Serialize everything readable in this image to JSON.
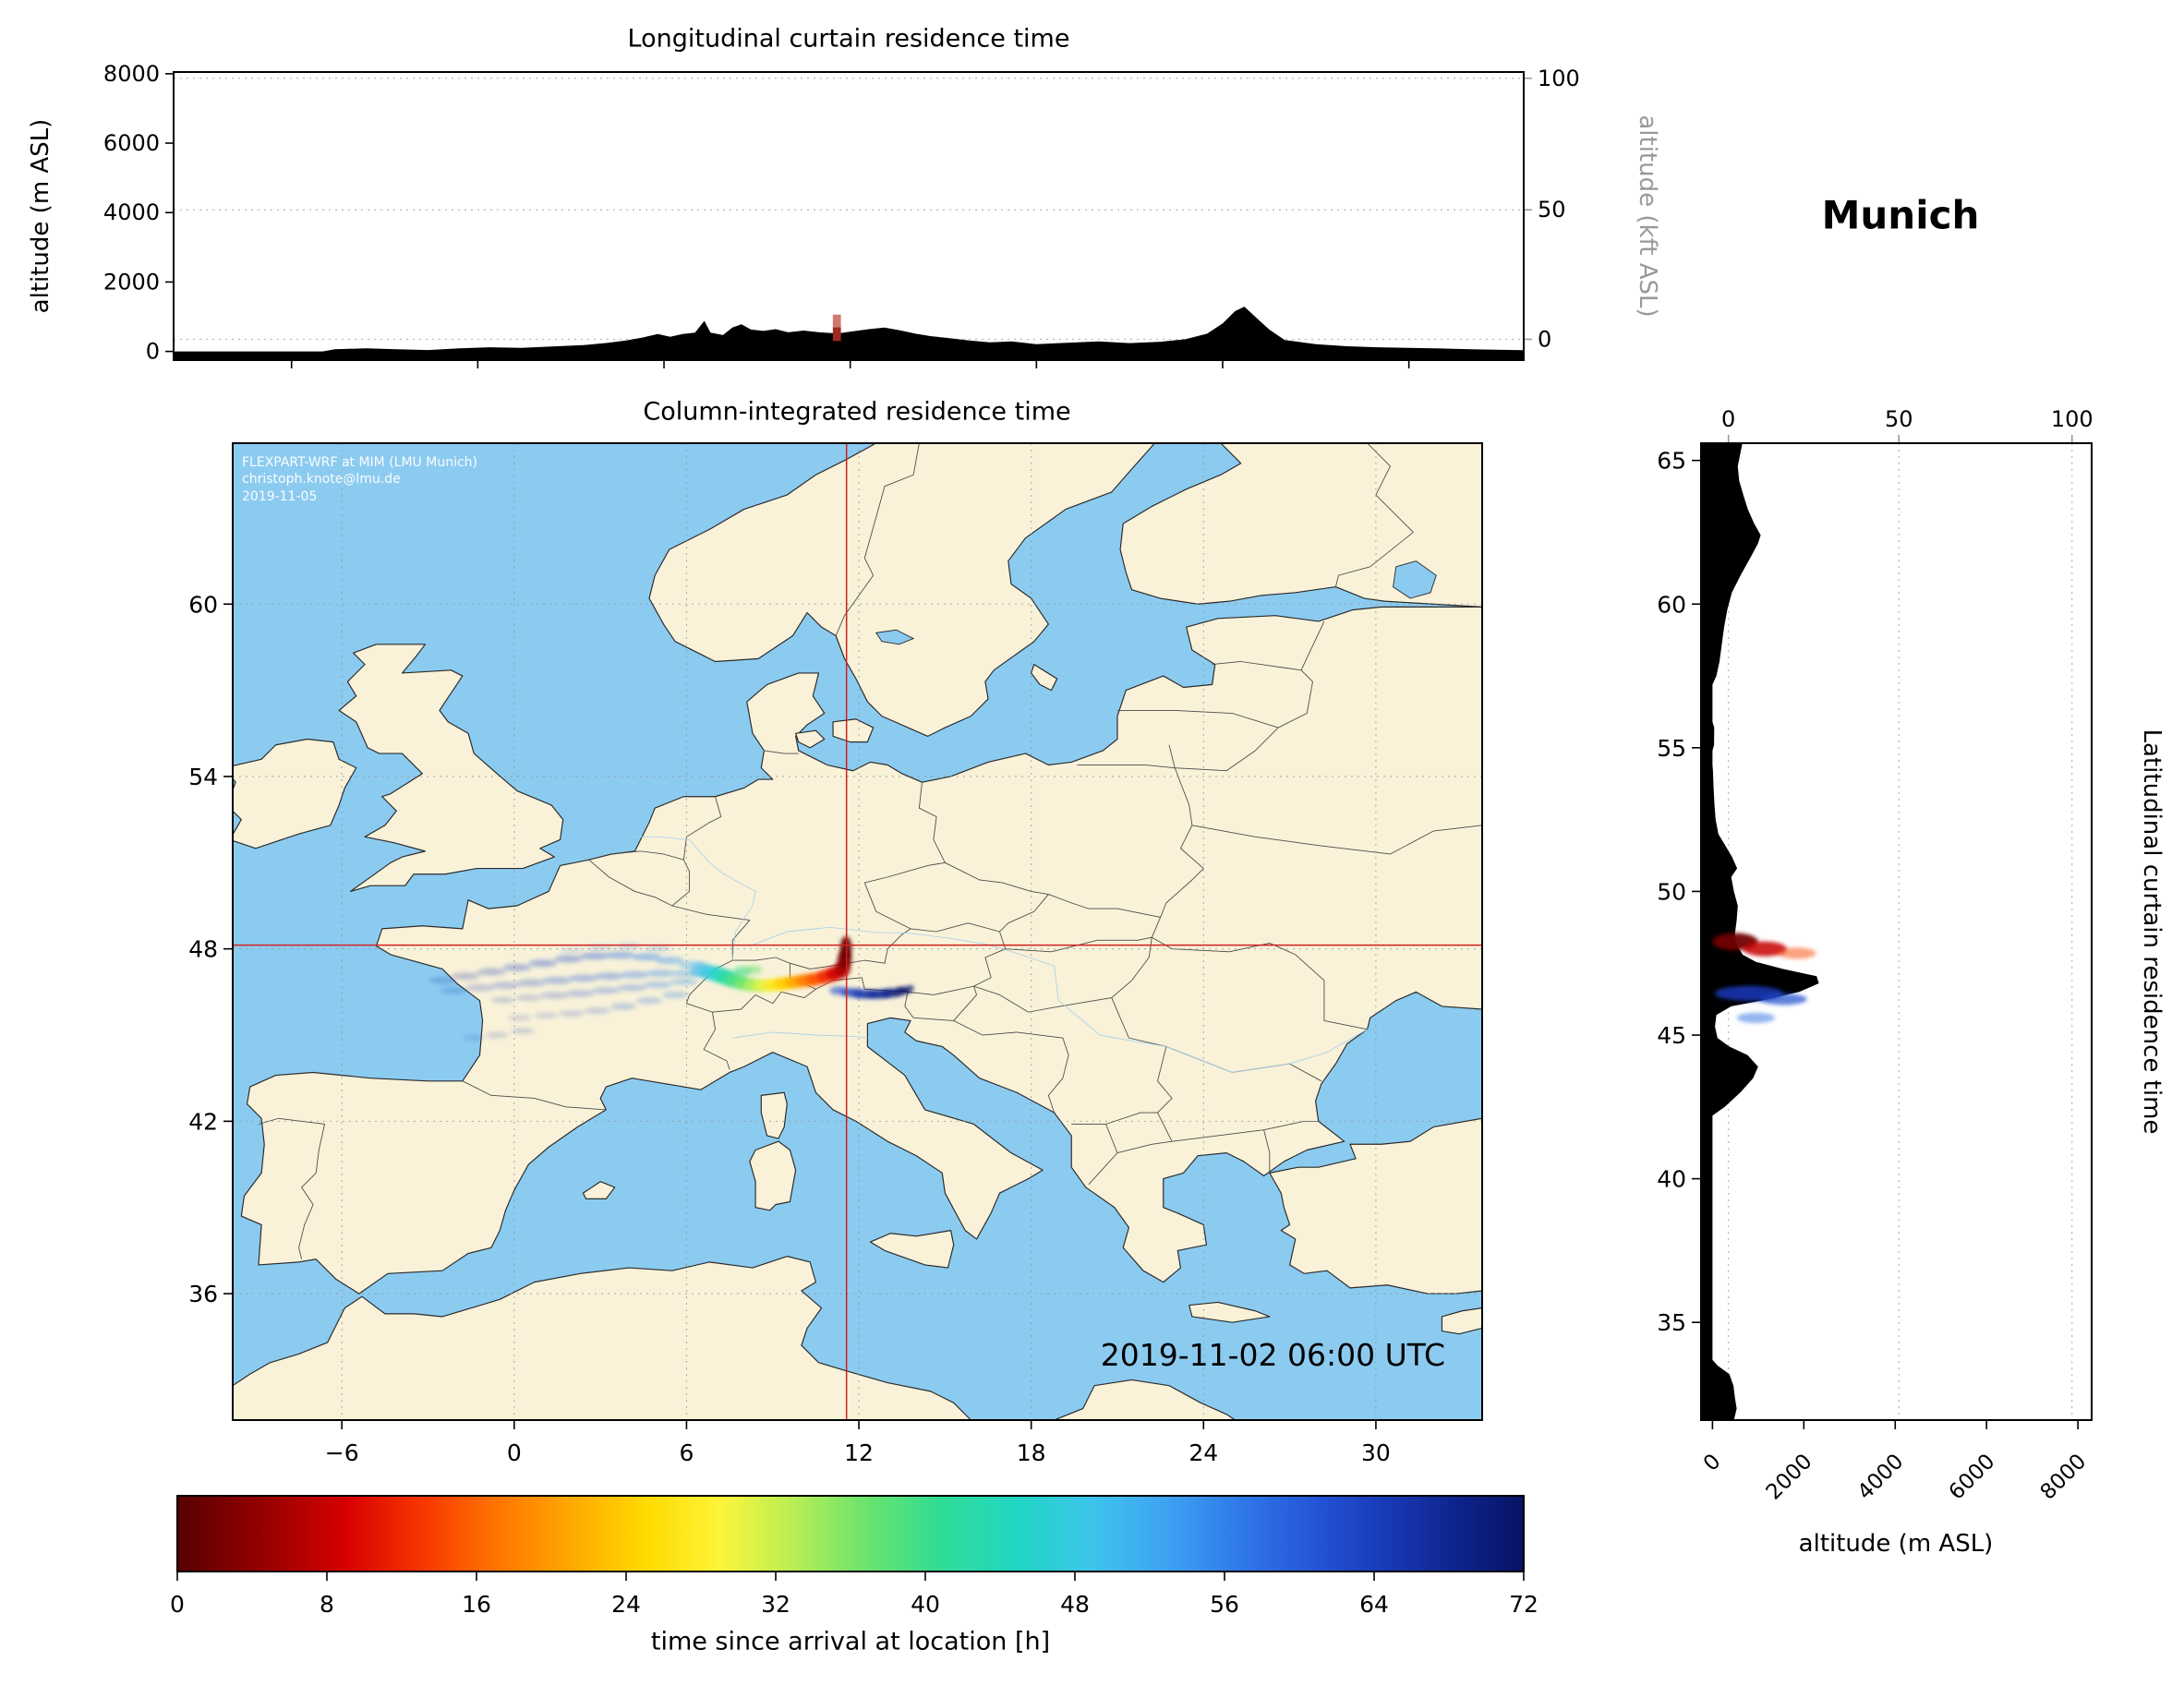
{
  "figure": {
    "location_label": "Munich",
    "top_panel_title": "Longitudinal curtain residence time",
    "map_title": "Column-integrated residence time",
    "right_panel_title": "Latitudinal curtain residence time",
    "alt_m_axis_label": "altitude (m ASL)",
    "alt_kft_axis_label": "altitude (kft ASL)",
    "right_alt_axis_label": "altitude (m ASL)",
    "timestamp": "2019-11-02 06:00 UTC",
    "watermark_line1": "FLEXPART-WRF at MIM (LMU Munich)",
    "watermark_line2": "christoph.knote@lmu.de",
    "watermark_line3": "2019-11-05",
    "colorbar_label": "time since arrival at location [h]"
  },
  "chart_data": {
    "type": "heatmap",
    "title": "FLEXPART-WRF backward residence time for Munich, 2019-11-02 06:00 UTC",
    "colorbar": {
      "range": [
        0,
        72
      ],
      "ticks": [
        0,
        8,
        16,
        24,
        32,
        40,
        48,
        56,
        64,
        72
      ],
      "stops": [
        [
          0,
          "#570000"
        ],
        [
          5,
          "#9b0000"
        ],
        [
          9,
          "#d60000"
        ],
        [
          13,
          "#f63500"
        ],
        [
          17,
          "#ff7300"
        ],
        [
          21,
          "#ffa800"
        ],
        [
          25,
          "#ffd900"
        ],
        [
          29,
          "#fdf53a"
        ],
        [
          33,
          "#b8ee55"
        ],
        [
          37,
          "#67e36e"
        ],
        [
          41,
          "#2fdc96"
        ],
        [
          45,
          "#21d6c5"
        ],
        [
          49,
          "#3ec3ec"
        ],
        [
          53,
          "#3da1f2"
        ],
        [
          57,
          "#2f77e8"
        ],
        [
          61,
          "#2353d6"
        ],
        [
          65,
          "#1737b2"
        ],
        [
          69,
          "#0c2187"
        ],
        [
          72,
          "#071263"
        ]
      ]
    },
    "map": {
      "lon_range": [
        -9.8,
        33.7
      ],
      "lat_range": [
        31.6,
        65.6
      ],
      "lon_ticks": [
        [
          -6,
          "−6"
        ],
        [
          0,
          "0"
        ],
        [
          6,
          "6"
        ],
        [
          12,
          "12"
        ],
        [
          18,
          "18"
        ],
        [
          24,
          "24"
        ],
        [
          30,
          "30"
        ]
      ],
      "lat_ticks": [
        [
          36,
          "36"
        ],
        [
          42,
          "42"
        ],
        [
          48,
          "48"
        ],
        [
          54,
          "54"
        ],
        [
          60,
          "60"
        ]
      ],
      "source": {
        "lon": 11.57,
        "lat": 48.13
      },
      "sea_color": "#8ccbf0",
      "land_color": "#f9f2d9",
      "crosshair_color": "#d02020"
    },
    "longitudinal_curtain": {
      "alt_range_m": [
        -250,
        8050
      ],
      "alt_ticks": [
        [
          0,
          "0"
        ],
        [
          2000,
          "2000"
        ],
        [
          4000,
          "4000"
        ],
        [
          6000,
          "6000"
        ],
        [
          8000,
          "8000"
        ]
      ],
      "kft_ticks": [
        [
          350,
          "0"
        ],
        [
          4080,
          "50"
        ],
        [
          7870,
          "100"
        ]
      ],
      "source_marker": {
        "lon": 11.57,
        "half_width_deg": 0.13,
        "segments": [
          [
            300,
            700,
            "#9c2b23"
          ],
          [
            700,
            1060,
            "#cf7a6d"
          ]
        ]
      },
      "terrain": [
        [
          -9.8,
          0
        ],
        [
          -5.0,
          0
        ],
        [
          -4.6,
          60
        ],
        [
          -3.6,
          90
        ],
        [
          -2.6,
          60
        ],
        [
          -1.6,
          40
        ],
        [
          -0.6,
          90
        ],
        [
          0.4,
          120
        ],
        [
          1.4,
          100
        ],
        [
          2.4,
          140
        ],
        [
          3.4,
          180
        ],
        [
          4.2,
          250
        ],
        [
          4.8,
          320
        ],
        [
          5.3,
          400
        ],
        [
          5.8,
          500
        ],
        [
          6.2,
          420
        ],
        [
          6.6,
          500
        ],
        [
          7.0,
          540
        ],
        [
          7.3,
          880
        ],
        [
          7.5,
          540
        ],
        [
          7.9,
          470
        ],
        [
          8.2,
          690
        ],
        [
          8.5,
          780
        ],
        [
          8.8,
          630
        ],
        [
          9.2,
          590
        ],
        [
          9.6,
          640
        ],
        [
          10.0,
          550
        ],
        [
          10.5,
          600
        ],
        [
          11.0,
          550
        ],
        [
          11.6,
          520
        ],
        [
          12.1,
          580
        ],
        [
          12.6,
          640
        ],
        [
          13.1,
          690
        ],
        [
          13.6,
          610
        ],
        [
          14.1,
          510
        ],
        [
          14.6,
          440
        ],
        [
          15.1,
          390
        ],
        [
          15.8,
          320
        ],
        [
          16.5,
          260
        ],
        [
          17.2,
          290
        ],
        [
          18.0,
          210
        ],
        [
          19.0,
          250
        ],
        [
          20.0,
          290
        ],
        [
          21.0,
          240
        ],
        [
          22.0,
          280
        ],
        [
          22.8,
          350
        ],
        [
          23.5,
          510
        ],
        [
          24.0,
          810
        ],
        [
          24.4,
          1160
        ],
        [
          24.7,
          1290
        ],
        [
          25.0,
          1040
        ],
        [
          25.5,
          630
        ],
        [
          26.0,
          330
        ],
        [
          27.0,
          210
        ],
        [
          28.0,
          150
        ],
        [
          29.0,
          120
        ],
        [
          30.0,
          100
        ],
        [
          31.0,
          85
        ],
        [
          32.0,
          65
        ],
        [
          33.0,
          45
        ],
        [
          33.7,
          35
        ]
      ]
    },
    "latitudinal_curtain": {
      "alt_range_m": [
        -250,
        8300
      ],
      "alt_ticks": [
        [
          0,
          "0"
        ],
        [
          2000,
          "2000"
        ],
        [
          4000,
          "4000"
        ],
        [
          6000,
          "6000"
        ],
        [
          8000,
          "8000"
        ]
      ],
      "kft_ticks": [
        [
          350,
          "0"
        ],
        [
          4080,
          "50"
        ],
        [
          7870,
          "100"
        ]
      ],
      "lat_ticks": [
        [
          35,
          "35"
        ],
        [
          40,
          "40"
        ],
        [
          45,
          "45"
        ],
        [
          50,
          "50"
        ],
        [
          55,
          "55"
        ],
        [
          60,
          "60"
        ],
        [
          65,
          "65"
        ]
      ],
      "terrain": [
        [
          31.6,
          470
        ],
        [
          32.0,
          530
        ],
        [
          32.4,
          490
        ],
        [
          32.8,
          460
        ],
        [
          33.2,
          370
        ],
        [
          33.5,
          110
        ],
        [
          33.7,
          0
        ],
        [
          42.2,
          0
        ],
        [
          42.5,
          270
        ],
        [
          43.0,
          610
        ],
        [
          43.5,
          890
        ],
        [
          43.9,
          1000
        ],
        [
          44.3,
          770
        ],
        [
          44.6,
          370
        ],
        [
          44.9,
          110
        ],
        [
          45.3,
          55
        ],
        [
          45.7,
          85
        ],
        [
          46.0,
          410
        ],
        [
          46.2,
          1080
        ],
        [
          46.5,
          1900
        ],
        [
          46.8,
          2330
        ],
        [
          47.05,
          2280
        ],
        [
          47.3,
          1550
        ],
        [
          47.55,
          950
        ],
        [
          47.8,
          660
        ],
        [
          48.13,
          540
        ],
        [
          48.5,
          490
        ],
        [
          49.0,
          530
        ],
        [
          49.5,
          555
        ],
        [
          50.0,
          470
        ],
        [
          50.5,
          410
        ],
        [
          50.8,
          540
        ],
        [
          51.2,
          430
        ],
        [
          51.6,
          280
        ],
        [
          52.0,
          130
        ],
        [
          52.5,
          70
        ],
        [
          53.0,
          45
        ],
        [
          53.6,
          25
        ],
        [
          54.2,
          10
        ],
        [
          54.4,
          0
        ],
        [
          54.9,
          0
        ],
        [
          55.1,
          35
        ],
        [
          55.7,
          40
        ],
        [
          55.9,
          0
        ],
        [
          57.2,
          0
        ],
        [
          57.5,
          85
        ],
        [
          58.0,
          155
        ],
        [
          58.6,
          205
        ],
        [
          59.2,
          255
        ],
        [
          59.8,
          325
        ],
        [
          60.4,
          425
        ],
        [
          61.0,
          615
        ],
        [
          61.6,
          825
        ],
        [
          62.1,
          995
        ],
        [
          62.4,
          1055
        ],
        [
          62.8,
          915
        ],
        [
          63.3,
          775
        ],
        [
          63.8,
          675
        ],
        [
          64.3,
          585
        ],
        [
          64.8,
          555
        ],
        [
          65.2,
          605
        ],
        [
          65.6,
          655
        ]
      ],
      "features": [
        [
          48.25,
          500,
          2,
          500,
          0.3,
          0.95
        ],
        [
          48.0,
          1150,
          8,
          480,
          0.26,
          0.85
        ],
        [
          47.85,
          1850,
          14,
          420,
          0.2,
          0.5
        ],
        [
          46.45,
          800,
          66,
          750,
          0.26,
          0.95
        ],
        [
          46.25,
          1550,
          62,
          520,
          0.2,
          0.7
        ],
        [
          45.6,
          950,
          58,
          420,
          0.18,
          0.5
        ]
      ]
    },
    "plume_points": [
      [
        11.55,
        48.02,
        1,
        0.2,
        0.42,
        0.95
      ],
      [
        11.5,
        47.62,
        3,
        0.24,
        0.34,
        0.95
      ],
      [
        11.42,
        47.3,
        6,
        0.28,
        0.28,
        0.9
      ],
      [
        11.18,
        47.15,
        9,
        0.33,
        0.24,
        0.9
      ],
      [
        10.88,
        47.05,
        12,
        0.36,
        0.23,
        0.9
      ],
      [
        10.52,
        46.95,
        15,
        0.38,
        0.22,
        0.9
      ],
      [
        10.16,
        46.9,
        18,
        0.38,
        0.22,
        0.9
      ],
      [
        9.8,
        46.85,
        21,
        0.38,
        0.21,
        0.9
      ],
      [
        9.45,
        46.8,
        24,
        0.4,
        0.21,
        0.9
      ],
      [
        9.1,
        46.75,
        27,
        0.4,
        0.21,
        0.9
      ],
      [
        8.75,
        46.72,
        30,
        0.4,
        0.21,
        0.85
      ],
      [
        8.4,
        46.73,
        33,
        0.4,
        0.21,
        0.85
      ],
      [
        8.05,
        46.78,
        36,
        0.4,
        0.22,
        0.85
      ],
      [
        7.72,
        46.88,
        39,
        0.4,
        0.24,
        0.85
      ],
      [
        7.42,
        47.0,
        42,
        0.38,
        0.26,
        0.85
      ],
      [
        7.12,
        47.1,
        45,
        0.38,
        0.26,
        0.8
      ],
      [
        6.82,
        47.18,
        48,
        0.38,
        0.25,
        0.75
      ],
      [
        6.52,
        47.25,
        50,
        0.38,
        0.24,
        0.65
      ],
      [
        7.95,
        47.22,
        40,
        0.3,
        0.18,
        0.6
      ],
      [
        8.35,
        47.28,
        37,
        0.28,
        0.16,
        0.5
      ],
      [
        6.2,
        47.45,
        52,
        0.5,
        0.13,
        0.45
      ],
      [
        5.4,
        47.6,
        54,
        0.5,
        0.13,
        0.45
      ],
      [
        4.6,
        47.72,
        56,
        0.5,
        0.13,
        0.45
      ],
      [
        3.7,
        47.78,
        58,
        0.5,
        0.13,
        0.42
      ],
      [
        2.8,
        47.75,
        60,
        0.5,
        0.13,
        0.4
      ],
      [
        1.9,
        47.65,
        61,
        0.5,
        0.13,
        0.38
      ],
      [
        1.0,
        47.5,
        62,
        0.5,
        0.13,
        0.36
      ],
      [
        0.1,
        47.35,
        63,
        0.5,
        0.13,
        0.33
      ],
      [
        -0.8,
        47.2,
        64,
        0.5,
        0.13,
        0.3
      ],
      [
        -1.7,
        47.05,
        65,
        0.5,
        0.13,
        0.27
      ],
      [
        -2.5,
        46.9,
        66,
        0.45,
        0.12,
        0.22
      ],
      [
        6.0,
        47.15,
        53,
        0.5,
        0.13,
        0.4
      ],
      [
        5.1,
        47.15,
        55,
        0.5,
        0.13,
        0.4
      ],
      [
        4.2,
        47.1,
        57,
        0.5,
        0.13,
        0.38
      ],
      [
        3.3,
        47.05,
        59,
        0.5,
        0.13,
        0.36
      ],
      [
        2.4,
        46.98,
        60,
        0.5,
        0.13,
        0.34
      ],
      [
        1.5,
        46.9,
        61,
        0.5,
        0.13,
        0.32
      ],
      [
        0.6,
        46.82,
        62,
        0.5,
        0.13,
        0.3
      ],
      [
        -0.3,
        46.73,
        63,
        0.5,
        0.13,
        0.27
      ],
      [
        -1.2,
        46.65,
        64,
        0.5,
        0.13,
        0.24
      ],
      [
        -2.1,
        46.55,
        65,
        0.45,
        0.12,
        0.2
      ],
      [
        5.9,
        46.85,
        54,
        0.5,
        0.12,
        0.35
      ],
      [
        5.0,
        46.75,
        56,
        0.5,
        0.12,
        0.34
      ],
      [
        4.1,
        46.65,
        58,
        0.5,
        0.12,
        0.32
      ],
      [
        3.2,
        46.55,
        59,
        0.5,
        0.12,
        0.3
      ],
      [
        2.3,
        46.45,
        61,
        0.5,
        0.12,
        0.28
      ],
      [
        1.4,
        46.38,
        62,
        0.5,
        0.12,
        0.26
      ],
      [
        0.5,
        46.3,
        63,
        0.45,
        0.11,
        0.23
      ],
      [
        -0.4,
        46.22,
        64,
        0.4,
        0.11,
        0.2
      ],
      [
        5.6,
        46.4,
        56,
        0.45,
        0.12,
        0.3
      ],
      [
        4.7,
        46.2,
        58,
        0.45,
        0.12,
        0.28
      ],
      [
        3.8,
        46.0,
        60,
        0.45,
        0.12,
        0.26
      ],
      [
        2.9,
        45.85,
        61,
        0.45,
        0.11,
        0.24
      ],
      [
        2.0,
        45.75,
        62,
        0.45,
        0.11,
        0.22
      ],
      [
        1.1,
        45.68,
        63,
        0.4,
        0.1,
        0.2
      ],
      [
        0.2,
        45.6,
        64,
        0.4,
        0.1,
        0.18
      ],
      [
        0.3,
        45.15,
        65,
        0.4,
        0.1,
        0.2
      ],
      [
        -0.6,
        45.0,
        66,
        0.4,
        0.1,
        0.18
      ],
      [
        -1.4,
        44.9,
        67,
        0.35,
        0.09,
        0.15
      ],
      [
        5.0,
        48.0,
        57,
        0.45,
        0.11,
        0.22
      ],
      [
        4.0,
        48.1,
        58,
        0.45,
        0.11,
        0.2
      ],
      [
        3.0,
        48.05,
        59,
        0.45,
        0.11,
        0.18
      ],
      [
        2.0,
        47.95,
        60,
        0.4,
        0.1,
        0.16
      ],
      [
        11.3,
        46.55,
        62,
        0.32,
        0.15,
        0.6
      ],
      [
        11.75,
        46.48,
        64,
        0.38,
        0.15,
        0.8
      ],
      [
        12.2,
        46.42,
        66,
        0.42,
        0.15,
        0.9
      ],
      [
        12.7,
        46.42,
        68,
        0.42,
        0.15,
        0.92
      ],
      [
        13.15,
        46.47,
        70,
        0.38,
        0.15,
        0.92
      ],
      [
        13.55,
        46.55,
        72,
        0.28,
        0.13,
        0.92
      ],
      [
        13.8,
        46.64,
        72,
        0.12,
        0.08,
        0.8
      ]
    ]
  }
}
